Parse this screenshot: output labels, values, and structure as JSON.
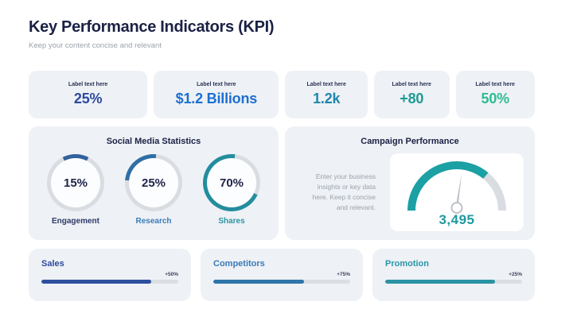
{
  "page": {
    "title": "Key Performance Indicators (KPI)",
    "subtitle": "Keep your content concise and relevant",
    "background": "#ffffff",
    "card_background": "#eef1f5",
    "heading_color": "#1b2145"
  },
  "kpis": [
    {
      "label": "Label text here",
      "value": "25%",
      "color": "#2d4a9e"
    },
    {
      "label": "Label text here",
      "value": "$1.2 Billions",
      "color": "#1c6fd2"
    },
    {
      "label": "Label text here",
      "value": "1.2k",
      "color": "#1f86ad"
    },
    {
      "label": "Label text here",
      "value": "+80",
      "color": "#1d9a96"
    },
    {
      "label": "Label text here",
      "value": "50%",
      "color": "#2bbd92"
    }
  ],
  "social": {
    "title": "Social Media Statistics",
    "donuts": [
      {
        "label": "Engagement",
        "value": "15%",
        "percent": 15,
        "start_deg": -27,
        "arc_color": "#33619e",
        "track_color": "#d9dde2",
        "label_color": "#2e3a68"
      },
      {
        "label": "Research",
        "value": "25%",
        "percent": 25,
        "start_deg": -85,
        "arc_color": "#2f6ea6",
        "track_color": "#d9dde2",
        "label_color": "#3b7cb8"
      },
      {
        "label": "Shares",
        "value": "70%",
        "percent": 70,
        "start_deg": 115,
        "arc_color": "#238d9e",
        "track_color": "#d9dde2",
        "label_color": "#2b96a6"
      }
    ]
  },
  "campaign": {
    "title": "Campaign Performance",
    "description": "Enter your business insights or key data here. Keep it concise and relevant.",
    "gauge": {
      "value": "3,495",
      "value_color": "#1d9aa0",
      "percent": 72,
      "needle_deg": 8,
      "arc_color": "#1ba0a4",
      "track_color": "#d9dde2"
    }
  },
  "progress": [
    {
      "label": "Sales",
      "badge": "+50%",
      "percent": 80,
      "bar_color": "#2d4f9e",
      "label_color": "#2d4a9e"
    },
    {
      "label": "Competitors",
      "badge": "+75%",
      "percent": 66,
      "bar_color": "#2e75a8",
      "label_color": "#3a7ab8"
    },
    {
      "label": "Promotion",
      "badge": "+25%",
      "percent": 80,
      "bar_color": "#2a93a4",
      "label_color": "#2a96a8"
    }
  ],
  "chart_data": [
    {
      "type": "pie",
      "subtype": "donut-rings",
      "title": "Social Media Statistics",
      "categories": [
        "Engagement",
        "Research",
        "Shares"
      ],
      "values": [
        15,
        25,
        70
      ],
      "unit": "%",
      "note": "three independent donut progress rings with value labels inside"
    },
    {
      "type": "pie",
      "subtype": "gauge",
      "title": "Campaign Performance",
      "value_label": "3,495",
      "value": 3495,
      "gauge_fill_percent_of_semicircle": 72,
      "note": "semicircular gauge, teal fill from left, needle slightly right of vertical"
    },
    {
      "type": "bar",
      "subtype": "horizontal-progress",
      "categories": [
        "Sales",
        "Competitors",
        "Promotion"
      ],
      "value_labels": [
        "+50%",
        "+75%",
        "+25%"
      ],
      "bar_fill_percent": [
        80,
        66,
        80
      ]
    },
    {
      "type": "table",
      "title": "KPI cards",
      "categories": [
        "Label text here",
        "Label text here",
        "Label text here",
        "Label text here",
        "Label text here"
      ],
      "values": [
        "25%",
        "$1.2 Billions",
        "1.2k",
        "+80",
        "50%"
      ]
    }
  ]
}
